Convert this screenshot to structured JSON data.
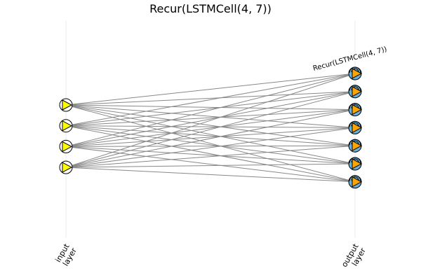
{
  "title": "Recur(LSTMCell(4, 7))",
  "layers": {
    "input": {
      "label_line1": "input",
      "label_line2": "layer",
      "node_count": 4
    },
    "output": {
      "label_line1": "output",
      "label_line2": "layer",
      "node_count": 7,
      "cell_label": "Recur(LSTMCell(4, 7))"
    }
  },
  "colors": {
    "edge": "#888888",
    "guide": "#ebebeb",
    "input_node_fill": "#ffffff",
    "input_marker": "#ffff00",
    "output_node_fill": "#6baed6",
    "output_marker": "#ffa500",
    "stroke": "#000000"
  },
  "icons": {
    "input_node": "play-triangle-in-circle",
    "output_node": "play-triangle-in-circle-with-recurrent-loop"
  }
}
